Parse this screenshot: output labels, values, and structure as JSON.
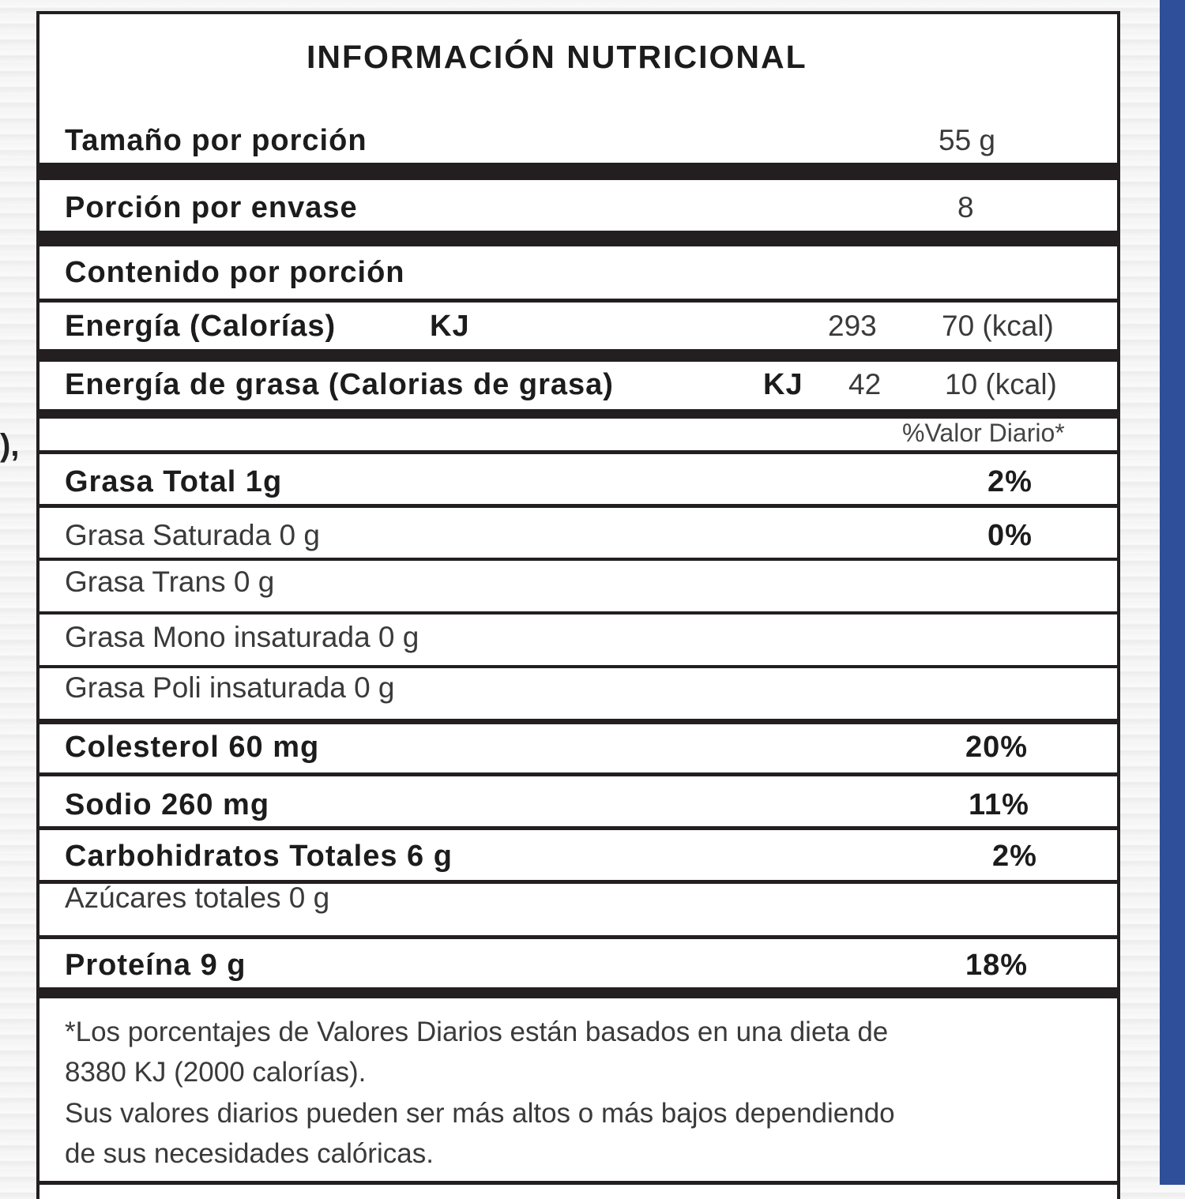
{
  "colors": {
    "accent_strip": "#2f4f9a",
    "rule": "#231f20"
  },
  "stray_text": "),",
  "label": {
    "title": "INFORMACIÓN NUTRICIONAL",
    "serving_size": {
      "label": "Tamaño por porción",
      "value": "55 g"
    },
    "servings_per_container": {
      "label": "Porción por envase",
      "value": "8"
    },
    "content_per_serving": "Contenido por porción",
    "energy": {
      "label": "Energía (Calorías)",
      "unit": "KJ",
      "kj": "293",
      "kcal": "70 (kcal)"
    },
    "fat_energy": {
      "label": "Energía de grasa (Calorias de grasa)",
      "unit": "KJ",
      "kj": "42",
      "kcal": "10 (kcal)"
    },
    "daily_value_header": "%Valor Diario*",
    "nutrients": [
      {
        "label": "Grasa Total 1g",
        "dv": "2%"
      },
      {
        "label": "Grasa Saturada 0 g",
        "dv": "0%"
      },
      {
        "label": "Grasa Trans 0 g",
        "dv": ""
      },
      {
        "label": "Grasa Mono insaturada 0 g",
        "dv": ""
      },
      {
        "label": "Grasa Poli insaturada 0 g",
        "dv": ""
      },
      {
        "label": "Colesterol 60 mg",
        "dv": "20%"
      },
      {
        "label": "Sodio 260 mg",
        "dv": "11%"
      },
      {
        "label": "Carbohidratos Totales 6 g",
        "dv": "2%"
      },
      {
        "label": "Azúcares totales 0 g",
        "dv": ""
      },
      {
        "label": "Proteína 9 g",
        "dv": "18%"
      }
    ],
    "footnote": [
      "*Los porcentajes de Valores Diarios están basados en una dieta de",
      "8380 KJ (2000 calorías).",
      "Sus valores diarios pueden ser más altos o más bajos dependiendo",
      "de sus necesidades calóricas."
    ]
  }
}
